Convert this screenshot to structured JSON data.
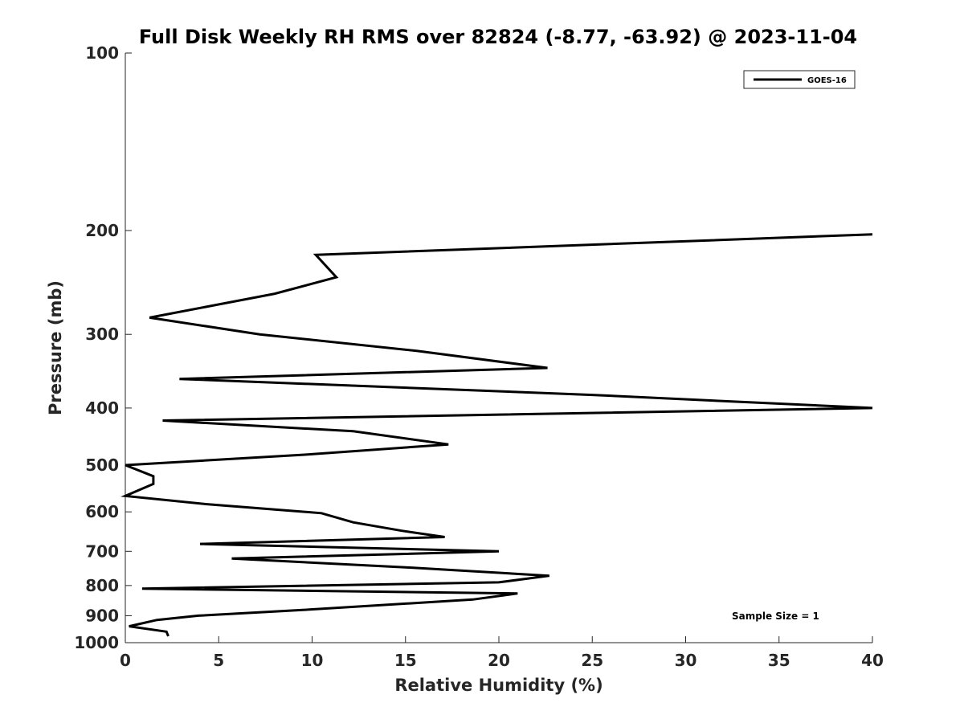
{
  "chart_data": {
    "type": "line",
    "title": "Full Disk Weekly RH RMS over 82824 (-8.77, -63.92) @ 2023-11-04",
    "xlabel": "Relative Humidity (%)",
    "ylabel": "Pressure (mb)",
    "xlim": [
      0,
      40
    ],
    "ylim": [
      100,
      1000
    ],
    "y_scale": "log",
    "y_reversed": true,
    "x_ticks": [
      "0",
      "5",
      "10",
      "15",
      "20",
      "25",
      "30",
      "35",
      "40"
    ],
    "y_ticks": [
      "100",
      "200",
      "300",
      "400",
      "500",
      "600",
      "700",
      "800",
      "900",
      "1000"
    ],
    "grid": false,
    "legend": {
      "position": "top-right",
      "entries": [
        "GOES-16"
      ]
    },
    "annotation": "Sample Size = 1",
    "series": [
      {
        "name": "GOES-16",
        "color": "#000000",
        "points": [
          {
            "x": 40.0,
            "y": 203
          },
          {
            "x": 10.2,
            "y": 220
          },
          {
            "x": 11.3,
            "y": 240
          },
          {
            "x": 8.0,
            "y": 256
          },
          {
            "x": 1.3,
            "y": 281
          },
          {
            "x": 7.2,
            "y": 300
          },
          {
            "x": 15.6,
            "y": 320
          },
          {
            "x": 22.6,
            "y": 342
          },
          {
            "x": 2.9,
            "y": 357
          },
          {
            "x": 25.0,
            "y": 380
          },
          {
            "x": 40.0,
            "y": 400
          },
          {
            "x": 2.0,
            "y": 420
          },
          {
            "x": 12.2,
            "y": 438
          },
          {
            "x": 17.3,
            "y": 461
          },
          {
            "x": 9.6,
            "y": 480
          },
          {
            "x": 0.0,
            "y": 500
          },
          {
            "x": 1.5,
            "y": 522
          },
          {
            "x": 1.5,
            "y": 538
          },
          {
            "x": 0.0,
            "y": 564
          },
          {
            "x": 4.3,
            "y": 582
          },
          {
            "x": 10.5,
            "y": 603
          },
          {
            "x": 12.2,
            "y": 625
          },
          {
            "x": 14.8,
            "y": 646
          },
          {
            "x": 17.1,
            "y": 662
          },
          {
            "x": 4.0,
            "y": 680
          },
          {
            "x": 20.0,
            "y": 700
          },
          {
            "x": 5.7,
            "y": 720
          },
          {
            "x": 15.0,
            "y": 745
          },
          {
            "x": 22.7,
            "y": 770
          },
          {
            "x": 20.0,
            "y": 790
          },
          {
            "x": 0.9,
            "y": 810
          },
          {
            "x": 21.0,
            "y": 825
          },
          {
            "x": 18.6,
            "y": 845
          },
          {
            "x": 9.5,
            "y": 880
          },
          {
            "x": 3.9,
            "y": 900
          },
          {
            "x": 1.7,
            "y": 915
          },
          {
            "x": 0.2,
            "y": 938
          },
          {
            "x": 2.2,
            "y": 958
          },
          {
            "x": 2.3,
            "y": 975
          }
        ]
      }
    ]
  }
}
